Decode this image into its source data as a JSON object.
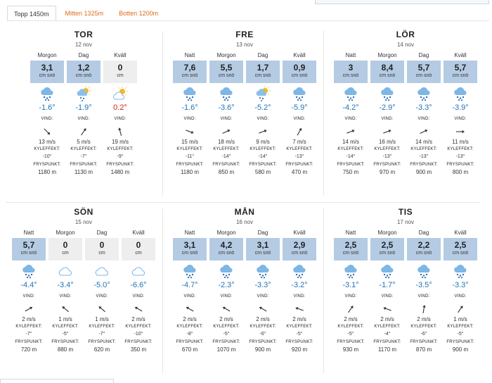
{
  "tabs": [
    {
      "label": "Topp 1450m",
      "active": true
    },
    {
      "label": "Mitten 1325m",
      "active": false
    },
    {
      "label": "Botten 1200m",
      "active": false
    }
  ],
  "labels": {
    "snow_unit": "cm snö",
    "snow_unit_zero": "cm",
    "wind": "VIND:",
    "chill": "KYLEFFEKT:",
    "freeze": "FRYSPUNKT:"
  },
  "colors": {
    "snow_box": "#b4cbe3",
    "snow_box_zero": "#eeeeee",
    "temp_cold": "#1f73b7",
    "temp_warm": "#c8251d",
    "tab_link": "#e06a1b"
  },
  "days": [
    {
      "name": "TOR",
      "date": "12 nov",
      "periods": [
        {
          "period": "Morgon",
          "snow": "3,1",
          "zero": false,
          "icon": "snow-cloud-icon",
          "temp": "-1.6°",
          "warm": false,
          "wind_angle": 45,
          "wind_speed": "13 m/s",
          "chill": "-10°",
          "freeze": "1180 m"
        },
        {
          "period": "Dag",
          "snow": "1,2",
          "zero": false,
          "icon": "sun-snow-cloud-icon",
          "temp": "-1.9°",
          "warm": false,
          "wind_angle": -55,
          "wind_speed": "5 m/s",
          "chill": "-7°",
          "freeze": "1130 m"
        },
        {
          "period": "Kväll",
          "snow": "0",
          "zero": true,
          "icon": "sun-cloud-icon",
          "temp": "0.2°",
          "warm": true,
          "wind_angle": -105,
          "wind_speed": "19 m/s",
          "chill": "-9°",
          "freeze": "1480 m"
        }
      ]
    },
    {
      "name": "FRE",
      "date": "13 nov",
      "periods": [
        {
          "period": "Natt",
          "snow": "7,6",
          "zero": false,
          "icon": "snow-cloud-icon",
          "temp": "-1.6°",
          "warm": false,
          "wind_angle": 20,
          "wind_speed": "15 m/s",
          "chill": "-11°",
          "freeze": "1180 m"
        },
        {
          "period": "Morgon",
          "snow": "5,5",
          "zero": false,
          "icon": "snow-cloud-icon",
          "temp": "-3.6°",
          "warm": false,
          "wind_angle": -25,
          "wind_speed": "18 m/s",
          "chill": "-14°",
          "freeze": "850 m"
        },
        {
          "period": "Dag",
          "snow": "1,7",
          "zero": false,
          "icon": "sun-snow-cloud-icon",
          "temp": "-5.2°",
          "warm": false,
          "wind_angle": -20,
          "wind_speed": "9 m/s",
          "chill": "-14°",
          "freeze": "580 m"
        },
        {
          "period": "Kväll",
          "snow": "0,9",
          "zero": false,
          "icon": "snow-cloud-icon",
          "temp": "-5.9°",
          "warm": false,
          "wind_angle": -60,
          "wind_speed": "7 m/s",
          "chill": "-13°",
          "freeze": "470 m"
        }
      ]
    },
    {
      "name": "LÖR",
      "date": "14 nov",
      "periods": [
        {
          "period": "Natt",
          "snow": "3",
          "zero": false,
          "icon": "snow-cloud-icon",
          "temp": "-4.2°",
          "warm": false,
          "wind_angle": -20,
          "wind_speed": "14 m/s",
          "chill": "-14°",
          "freeze": "750 m"
        },
        {
          "period": "Morgon",
          "snow": "8,4",
          "zero": false,
          "icon": "snow-cloud-icon",
          "temp": "-2.9°",
          "warm": false,
          "wind_angle": -20,
          "wind_speed": "16 m/s",
          "chill": "-13°",
          "freeze": "970 m"
        },
        {
          "period": "Dag",
          "snow": "5,7",
          "zero": false,
          "icon": "snow-cloud-icon",
          "temp": "-3.3°",
          "warm": false,
          "wind_angle": -25,
          "wind_speed": "14 m/s",
          "chill": "-13°",
          "freeze": "900 m"
        },
        {
          "period": "Kväll",
          "snow": "5,7",
          "zero": false,
          "icon": "snow-cloud-icon",
          "temp": "-3.9°",
          "warm": false,
          "wind_angle": 0,
          "wind_speed": "11 m/s",
          "chill": "-13°",
          "freeze": "800 m"
        }
      ]
    },
    {
      "name": "SÖN",
      "date": "15 nov",
      "periods": [
        {
          "period": "Natt",
          "snow": "5,7",
          "zero": false,
          "icon": "snow-cloud-icon",
          "temp": "-4.4°",
          "warm": false,
          "wind_angle": -30,
          "wind_speed": "2 m/s",
          "chill": "-7°",
          "freeze": "720 m"
        },
        {
          "period": "Morgon",
          "snow": "0",
          "zero": true,
          "icon": "cloud-icon",
          "temp": "-3.4°",
          "warm": false,
          "wind_angle": -140,
          "wind_speed": "1 m/s",
          "chill": "-5°",
          "freeze": "880 m"
        },
        {
          "period": "Dag",
          "snow": "0",
          "zero": true,
          "icon": "cloud-icon",
          "temp": "-5.0°",
          "warm": false,
          "wind_angle": -140,
          "wind_speed": "1 m/s",
          "chill": "-7°",
          "freeze": "620 m"
        },
        {
          "period": "Kväll",
          "snow": "0",
          "zero": true,
          "icon": "cloud-icon",
          "temp": "-6.6°",
          "warm": false,
          "wind_angle": -150,
          "wind_speed": "2 m/s",
          "chill": "-10°",
          "freeze": "350 m"
        }
      ]
    },
    {
      "name": "MÅN",
      "date": "16 nov",
      "periods": [
        {
          "period": "Natt",
          "snow": "3,1",
          "zero": false,
          "icon": "snow-cloud-icon",
          "temp": "-4.7°",
          "warm": false,
          "wind_angle": -150,
          "wind_speed": "2 m/s",
          "chill": "-8°",
          "freeze": "670 m"
        },
        {
          "period": "Morgon",
          "snow": "4,2",
          "zero": false,
          "icon": "snow-cloud-icon",
          "temp": "-2.3°",
          "warm": false,
          "wind_angle": -150,
          "wind_speed": "2 m/s",
          "chill": "-5°",
          "freeze": "1070 m"
        },
        {
          "period": "Dag",
          "snow": "3,1",
          "zero": false,
          "icon": "snow-cloud-icon",
          "temp": "-3.3°",
          "warm": false,
          "wind_angle": -150,
          "wind_speed": "2 m/s",
          "chill": "-6°",
          "freeze": "900 m"
        },
        {
          "period": "Kväll",
          "snow": "2,9",
          "zero": false,
          "icon": "snow-cloud-icon",
          "temp": "-3.2°",
          "warm": false,
          "wind_angle": -160,
          "wind_speed": "2 m/s",
          "chill": "-5°",
          "freeze": "920 m"
        }
      ]
    },
    {
      "name": "TIS",
      "date": "17 nov",
      "periods": [
        {
          "period": "Natt",
          "snow": "2,5",
          "zero": false,
          "icon": "snow-cloud-icon",
          "temp": "-3.1°",
          "warm": false,
          "wind_angle": -55,
          "wind_speed": "2 m/s",
          "chill": "-5°",
          "freeze": "930 m"
        },
        {
          "period": "Morgon",
          "snow": "2,5",
          "zero": false,
          "icon": "snow-cloud-icon",
          "temp": "-1.7°",
          "warm": false,
          "wind_angle": -160,
          "wind_speed": "2 m/s",
          "chill": "-4°",
          "freeze": "1170 m"
        },
        {
          "period": "Dag",
          "snow": "2,2",
          "zero": false,
          "icon": "snow-cloud-icon",
          "temp": "-3.5°",
          "warm": false,
          "wind_angle": -80,
          "wind_speed": "2 m/s",
          "chill": "-6°",
          "freeze": "870 m"
        },
        {
          "period": "Kväll",
          "snow": "2,5",
          "zero": false,
          "icon": "snow-cloud-icon",
          "temp": "-3.3°",
          "warm": false,
          "wind_angle": -55,
          "wind_speed": "1 m/s",
          "chill": "-5°",
          "freeze": "900 m"
        }
      ]
    }
  ]
}
